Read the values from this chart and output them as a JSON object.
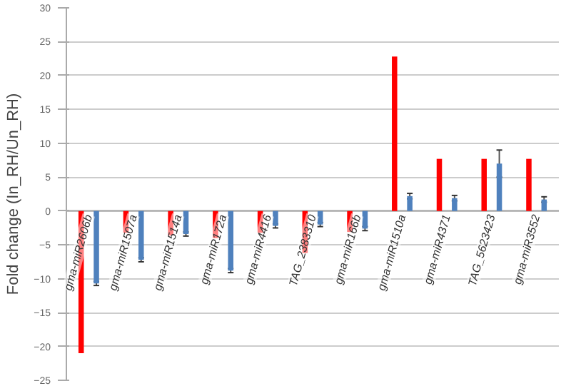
{
  "chart_data": {
    "type": "bar",
    "ylabel": "Fold change (In_RH/Un_RH)",
    "categories": [
      "gma-miR2606b",
      "gma-miR1507a",
      "gma-miR1514a",
      "gma-miR172a",
      "gma-miR4416",
      "TAG_2383310",
      "gma-miR166b",
      "gma-miR1510a",
      "gma-miR4371",
      "TAG_5623423",
      "gma-miR3552"
    ],
    "series": [
      {
        "color": "#ff0000",
        "values": [
          -21,
          -3.2,
          -3.6,
          -4,
          -3.2,
          -6.2,
          -3.1,
          22.8,
          7.7,
          7.7,
          7.7
        ]
      },
      {
        "color": "#4f81bd",
        "values": [
          -10.7,
          -7.2,
          -3.4,
          -8.8,
          -2.2,
          -2,
          -2.6,
          2.2,
          1.9,
          7,
          1.7
        ],
        "errors": [
          0.3,
          0.3,
          0.3,
          0.3,
          0.3,
          0.3,
          0.3,
          0.4,
          0.4,
          2,
          0.4
        ]
      }
    ],
    "ylim": [
      -25,
      30
    ],
    "yticks": [
      -25,
      -20,
      -15,
      -10,
      -5,
      0,
      5,
      10,
      15,
      20,
      25,
      30
    ],
    "grid": "y"
  }
}
